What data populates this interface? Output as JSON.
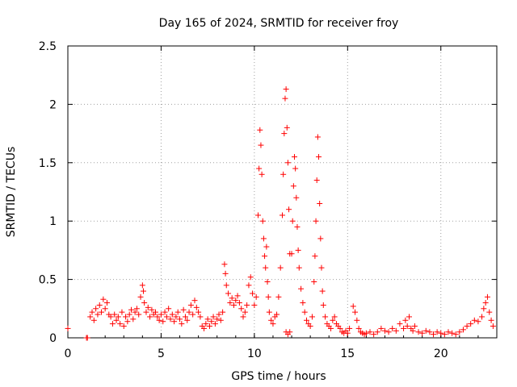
{
  "chart_data": {
    "type": "scatter",
    "title": "Day 165 of 2024, SRMTID for receiver froy",
    "xlabel": "GPS time / hours",
    "ylabel": "SRMTID / TECUs",
    "xlim": [
      0,
      23
    ],
    "ylim": [
      0,
      2.5
    ],
    "xticks": [
      0,
      5,
      10,
      15,
      20
    ],
    "xtick_labels": [
      "0",
      "5",
      "10",
      "15",
      "20"
    ],
    "yticks": [
      0,
      0.5,
      1,
      1.5,
      2,
      2.5
    ],
    "ytick_labels": [
      "0",
      "0.5",
      "1",
      "1.5",
      "2",
      "2.5"
    ],
    "grid": true,
    "marker": "+",
    "color": "#ff0000",
    "series": [
      {
        "name": "SRMTID",
        "points": [
          [
            0.0,
            0.08
          ],
          [
            1.0,
            0.0
          ],
          [
            1.05,
            0.0
          ],
          [
            1.2,
            0.18
          ],
          [
            1.3,
            0.22
          ],
          [
            1.4,
            0.15
          ],
          [
            1.5,
            0.25
          ],
          [
            1.6,
            0.2
          ],
          [
            1.7,
            0.28
          ],
          [
            1.8,
            0.22
          ],
          [
            1.9,
            0.33
          ],
          [
            2.0,
            0.25
          ],
          [
            2.1,
            0.3
          ],
          [
            2.2,
            0.2
          ],
          [
            2.3,
            0.18
          ],
          [
            2.4,
            0.12
          ],
          [
            2.5,
            0.2
          ],
          [
            2.6,
            0.15
          ],
          [
            2.7,
            0.18
          ],
          [
            2.8,
            0.12
          ],
          [
            2.9,
            0.22
          ],
          [
            3.0,
            0.1
          ],
          [
            3.1,
            0.18
          ],
          [
            3.2,
            0.14
          ],
          [
            3.3,
            0.2
          ],
          [
            3.4,
            0.24
          ],
          [
            3.5,
            0.16
          ],
          [
            3.6,
            0.22
          ],
          [
            3.7,
            0.25
          ],
          [
            3.8,
            0.2
          ],
          [
            3.9,
            0.35
          ],
          [
            4.0,
            0.45
          ],
          [
            4.05,
            0.4
          ],
          [
            4.1,
            0.3
          ],
          [
            4.2,
            0.22
          ],
          [
            4.3,
            0.26
          ],
          [
            4.4,
            0.18
          ],
          [
            4.5,
            0.24
          ],
          [
            4.6,
            0.2
          ],
          [
            4.7,
            0.22
          ],
          [
            4.8,
            0.18
          ],
          [
            4.9,
            0.15
          ],
          [
            5.0,
            0.2
          ],
          [
            5.1,
            0.14
          ],
          [
            5.2,
            0.22
          ],
          [
            5.3,
            0.18
          ],
          [
            5.4,
            0.25
          ],
          [
            5.5,
            0.16
          ],
          [
            5.6,
            0.2
          ],
          [
            5.7,
            0.14
          ],
          [
            5.8,
            0.18
          ],
          [
            5.9,
            0.22
          ],
          [
            6.0,
            0.16
          ],
          [
            6.1,
            0.12
          ],
          [
            6.2,
            0.24
          ],
          [
            6.3,
            0.18
          ],
          [
            6.4,
            0.15
          ],
          [
            6.5,
            0.22
          ],
          [
            6.6,
            0.28
          ],
          [
            6.7,
            0.2
          ],
          [
            6.8,
            0.32
          ],
          [
            6.9,
            0.26
          ],
          [
            7.0,
            0.22
          ],
          [
            7.1,
            0.18
          ],
          [
            7.2,
            0.1
          ],
          [
            7.3,
            0.08
          ],
          [
            7.4,
            0.12
          ],
          [
            7.5,
            0.16
          ],
          [
            7.6,
            0.1
          ],
          [
            7.7,
            0.14
          ],
          [
            7.8,
            0.18
          ],
          [
            7.9,
            0.12
          ],
          [
            8.0,
            0.16
          ],
          [
            8.1,
            0.2
          ],
          [
            8.2,
            0.15
          ],
          [
            8.3,
            0.22
          ],
          [
            8.4,
            0.63
          ],
          [
            8.45,
            0.55
          ],
          [
            8.5,
            0.45
          ],
          [
            8.6,
            0.38
          ],
          [
            8.7,
            0.3
          ],
          [
            8.8,
            0.34
          ],
          [
            8.9,
            0.28
          ],
          [
            9.0,
            0.32
          ],
          [
            9.1,
            0.36
          ],
          [
            9.2,
            0.3
          ],
          [
            9.3,
            0.25
          ],
          [
            9.4,
            0.18
          ],
          [
            9.5,
            0.22
          ],
          [
            9.6,
            0.28
          ],
          [
            9.7,
            0.45
          ],
          [
            9.8,
            0.52
          ],
          [
            9.9,
            0.38
          ],
          [
            10.0,
            0.28
          ],
          [
            10.1,
            0.35
          ],
          [
            10.2,
            1.05
          ],
          [
            10.25,
            1.45
          ],
          [
            10.3,
            1.78
          ],
          [
            10.35,
            1.65
          ],
          [
            10.4,
            1.4
          ],
          [
            10.45,
            1.0
          ],
          [
            10.5,
            0.85
          ],
          [
            10.55,
            0.7
          ],
          [
            10.6,
            0.6
          ],
          [
            10.65,
            0.78
          ],
          [
            10.7,
            0.48
          ],
          [
            10.75,
            0.35
          ],
          [
            10.8,
            0.22
          ],
          [
            10.9,
            0.15
          ],
          [
            11.0,
            0.12
          ],
          [
            11.1,
            0.18
          ],
          [
            11.2,
            0.2
          ],
          [
            11.3,
            0.35
          ],
          [
            11.4,
            0.6
          ],
          [
            11.5,
            1.05
          ],
          [
            11.55,
            1.4
          ],
          [
            11.6,
            1.75
          ],
          [
            11.65,
            2.05
          ],
          [
            11.7,
            2.13
          ],
          [
            11.75,
            1.8
          ],
          [
            11.8,
            1.5
          ],
          [
            11.85,
            1.1
          ],
          [
            11.9,
            0.72
          ],
          [
            11.7,
            0.05
          ],
          [
            11.8,
            0.03
          ],
          [
            11.9,
            0.05
          ],
          [
            12.0,
            0.72
          ],
          [
            12.05,
            1.0
          ],
          [
            12.1,
            1.3
          ],
          [
            12.15,
            1.55
          ],
          [
            12.2,
            1.45
          ],
          [
            12.25,
            1.2
          ],
          [
            12.3,
            0.95
          ],
          [
            12.35,
            0.75
          ],
          [
            12.4,
            0.6
          ],
          [
            12.5,
            0.42
          ],
          [
            12.6,
            0.3
          ],
          [
            12.7,
            0.22
          ],
          [
            12.8,
            0.15
          ],
          [
            12.9,
            0.12
          ],
          [
            13.0,
            0.1
          ],
          [
            13.1,
            0.18
          ],
          [
            13.2,
            0.48
          ],
          [
            13.25,
            0.7
          ],
          [
            13.3,
            1.0
          ],
          [
            13.35,
            1.35
          ],
          [
            13.4,
            1.72
          ],
          [
            13.45,
            1.55
          ],
          [
            13.5,
            1.15
          ],
          [
            13.55,
            0.85
          ],
          [
            13.6,
            0.6
          ],
          [
            13.65,
            0.4
          ],
          [
            13.7,
            0.28
          ],
          [
            13.8,
            0.18
          ],
          [
            13.9,
            0.12
          ],
          [
            14.0,
            0.1
          ],
          [
            14.1,
            0.08
          ],
          [
            14.2,
            0.15
          ],
          [
            14.3,
            0.18
          ],
          [
            14.4,
            0.12
          ],
          [
            14.5,
            0.1
          ],
          [
            14.6,
            0.08
          ],
          [
            14.7,
            0.05
          ],
          [
            14.8,
            0.04
          ],
          [
            14.9,
            0.06
          ],
          [
            15.0,
            0.04
          ],
          [
            15.1,
            0.08
          ],
          [
            15.3,
            0.27
          ],
          [
            15.4,
            0.22
          ],
          [
            15.5,
            0.15
          ],
          [
            15.6,
            0.08
          ],
          [
            15.7,
            0.05
          ],
          [
            15.8,
            0.04
          ],
          [
            15.9,
            0.03
          ],
          [
            16.0,
            0.04
          ],
          [
            16.2,
            0.05
          ],
          [
            16.4,
            0.03
          ],
          [
            16.6,
            0.05
          ],
          [
            16.8,
            0.08
          ],
          [
            17.0,
            0.06
          ],
          [
            17.2,
            0.05
          ],
          [
            17.4,
            0.08
          ],
          [
            17.6,
            0.06
          ],
          [
            17.8,
            0.12
          ],
          [
            18.0,
            0.08
          ],
          [
            18.1,
            0.15
          ],
          [
            18.2,
            0.1
          ],
          [
            18.3,
            0.18
          ],
          [
            18.4,
            0.08
          ],
          [
            18.5,
            0.06
          ],
          [
            18.6,
            0.1
          ],
          [
            18.8,
            0.05
          ],
          [
            19.0,
            0.04
          ],
          [
            19.2,
            0.06
          ],
          [
            19.4,
            0.05
          ],
          [
            19.6,
            0.03
          ],
          [
            19.8,
            0.05
          ],
          [
            20.0,
            0.04
          ],
          [
            20.2,
            0.03
          ],
          [
            20.4,
            0.05
          ],
          [
            20.6,
            0.04
          ],
          [
            20.8,
            0.03
          ],
          [
            21.0,
            0.05
          ],
          [
            21.2,
            0.07
          ],
          [
            21.4,
            0.1
          ],
          [
            21.6,
            0.12
          ],
          [
            21.8,
            0.15
          ],
          [
            22.0,
            0.14
          ],
          [
            22.2,
            0.18
          ],
          [
            22.3,
            0.25
          ],
          [
            22.4,
            0.3
          ],
          [
            22.5,
            0.35
          ],
          [
            22.6,
            0.22
          ],
          [
            22.7,
            0.15
          ],
          [
            22.8,
            0.1
          ]
        ]
      }
    ]
  }
}
